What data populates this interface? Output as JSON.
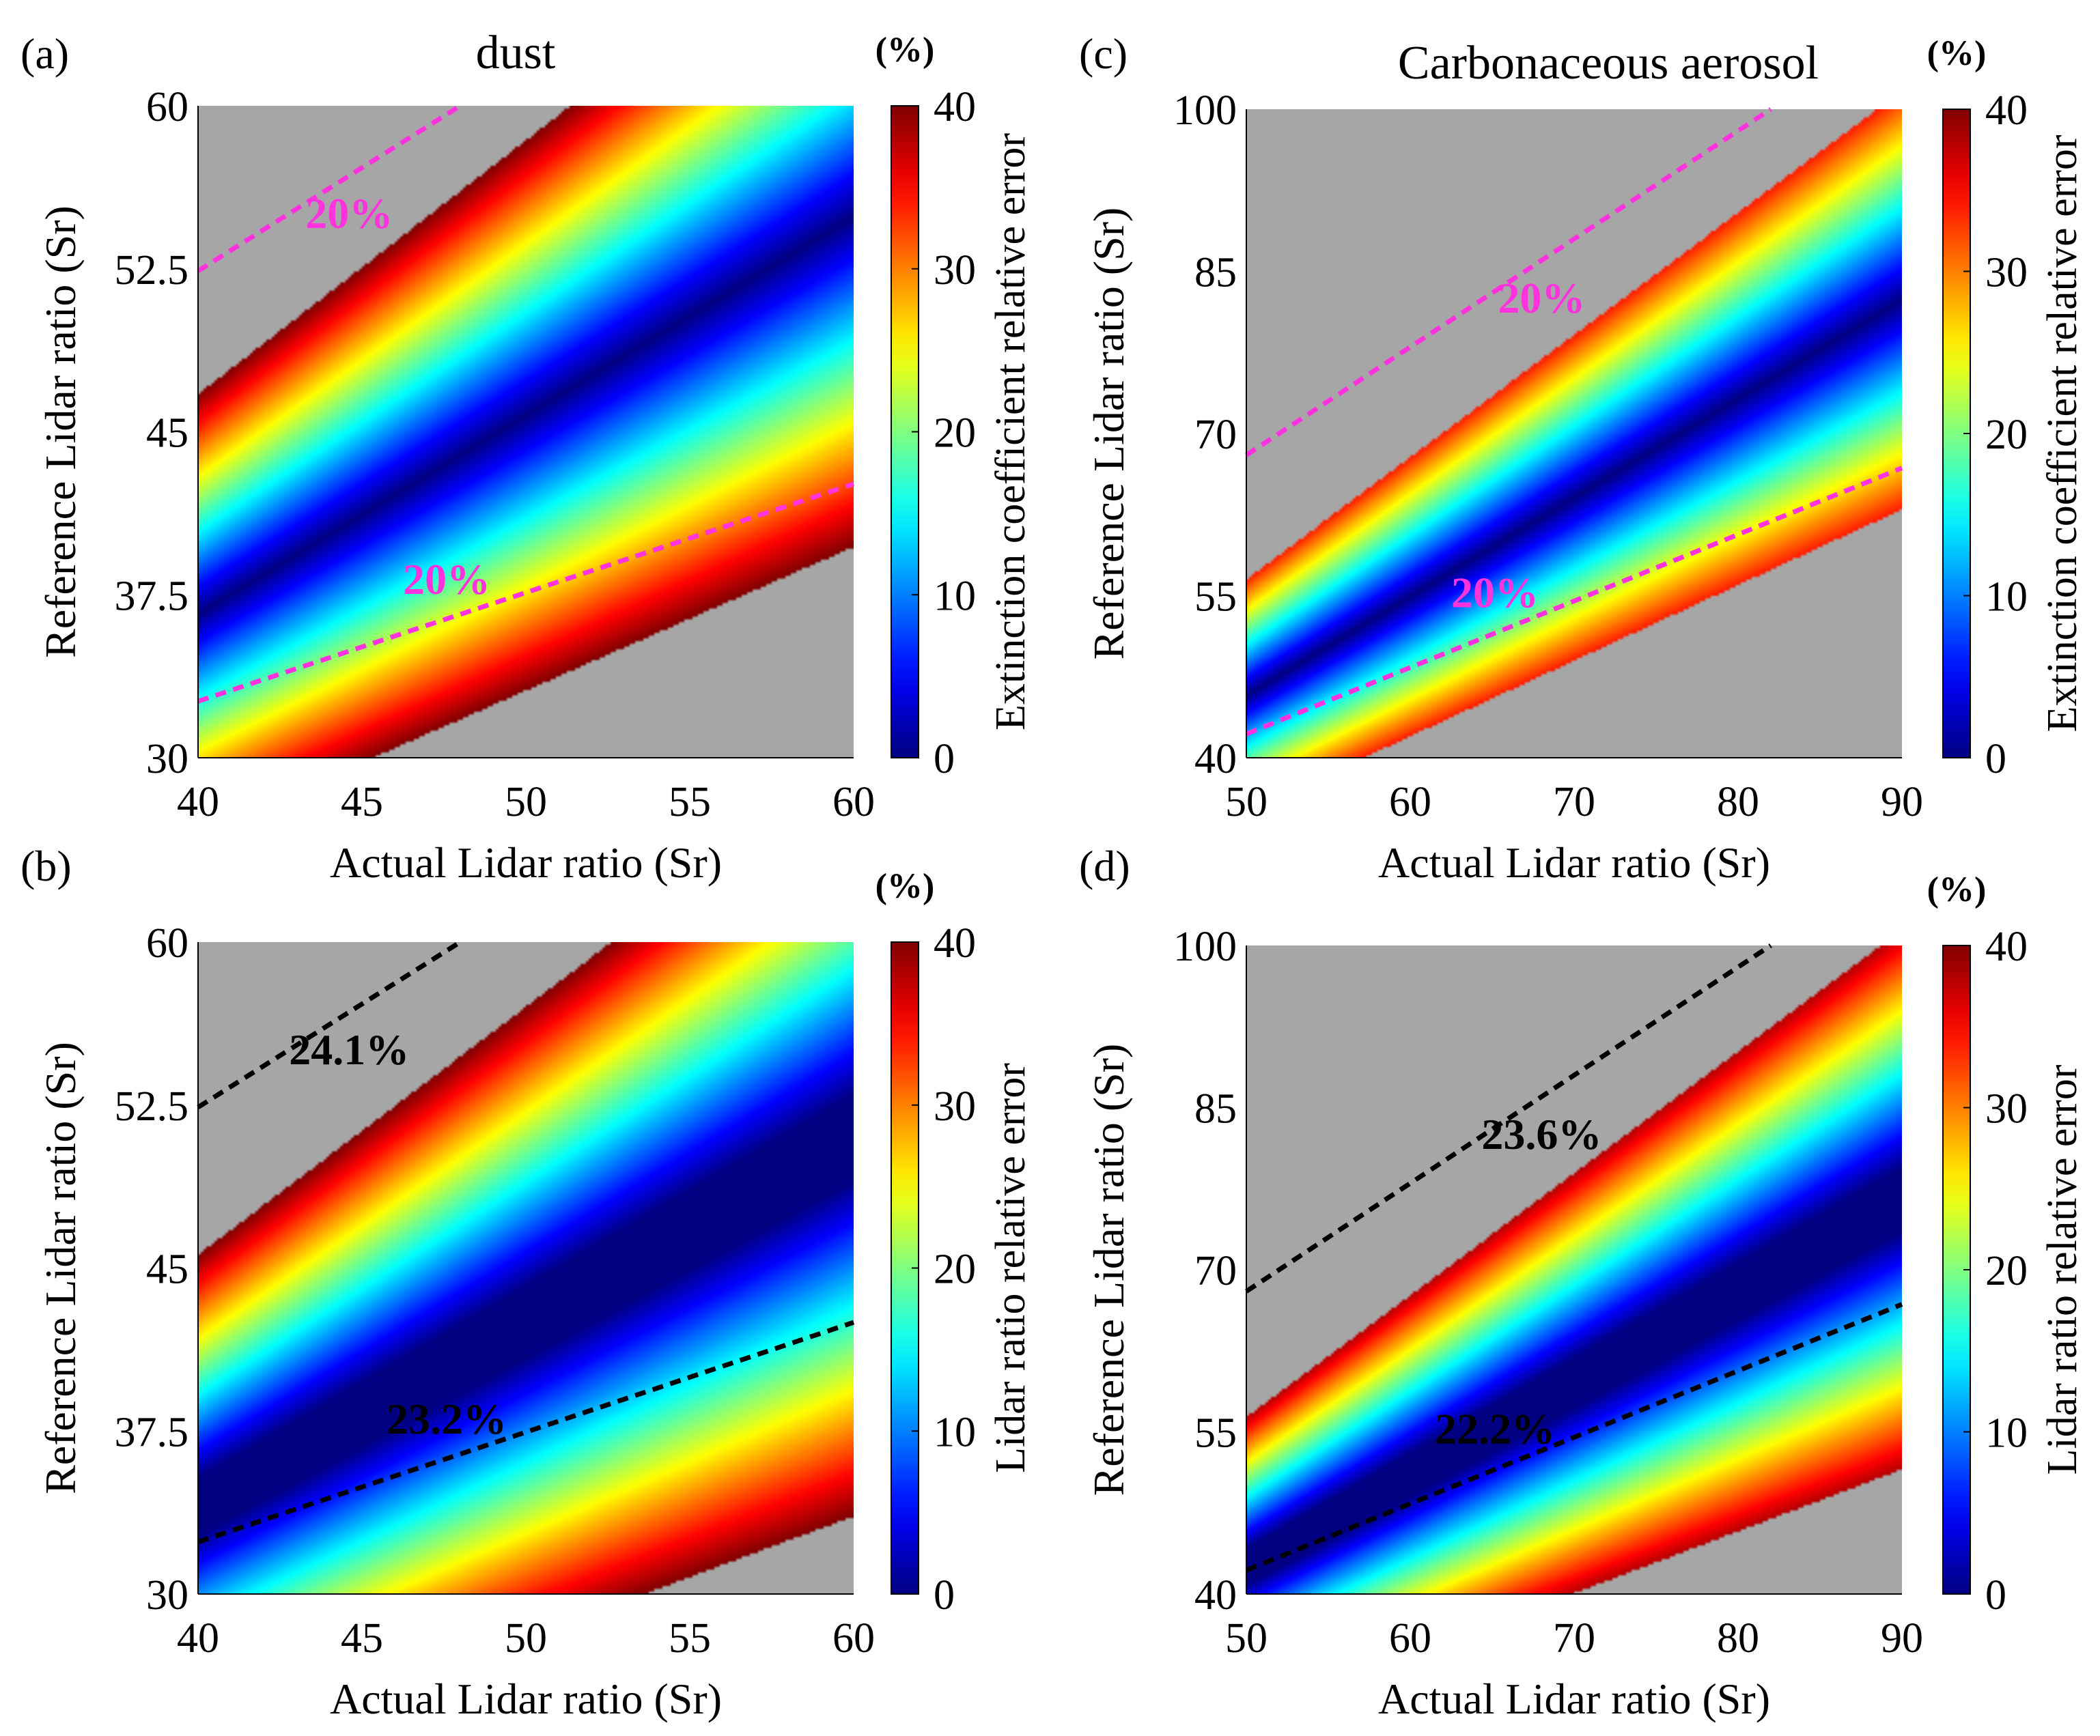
{
  "chart_data": [
    {
      "panel": "(a)",
      "type": "heatmap",
      "title": "dust",
      "xlabel": "Actual Lidar ratio (Sr)",
      "ylabel": "Reference Lidar ratio (Sr)",
      "xlim": [
        40,
        60
      ],
      "ylim": [
        30,
        60
      ],
      "xticks": [
        "40",
        "45",
        "50",
        "55",
        "60"
      ],
      "yticks": [
        "30",
        "37.5",
        "45",
        "52.5",
        "60"
      ],
      "colorbar": {
        "label": "Extinction coefficient relative error",
        "unit": "(%)",
        "range": [
          0,
          40
        ],
        "ticks": [
          "0",
          "10",
          "20",
          "30",
          "40"
        ],
        "colormap": "jet"
      },
      "error_model": "extinction",
      "valid_region_min_error": 0,
      "contours": [
        {
          "label": "20%",
          "color": "#ff33dd",
          "style": "dashed",
          "points": [
            [
              40,
              52.4
            ],
            [
              48,
              60
            ]
          ]
        },
        {
          "label": "20%",
          "color": "#ff33dd",
          "style": "dashed",
          "points": [
            [
              40,
              32.6
            ],
            [
              60,
              42.6
            ]
          ]
        }
      ],
      "missing_data_color": "#a6a6a6"
    },
    {
      "panel": "(b)",
      "type": "heatmap",
      "title": "",
      "xlabel": "Actual Lidar ratio (Sr)",
      "ylabel": "Reference Lidar ratio (Sr)",
      "xlim": [
        40,
        60
      ],
      "ylim": [
        30,
        60
      ],
      "xticks": [
        "40",
        "45",
        "50",
        "55",
        "60"
      ],
      "yticks": [
        "30",
        "37.5",
        "45",
        "52.5",
        "60"
      ],
      "colorbar": {
        "label": "Lidar ratio relative error",
        "unit": "(%)",
        "range": [
          0,
          40
        ],
        "ticks": [
          "0",
          "10",
          "20",
          "30",
          "40"
        ],
        "colormap": "jet"
      },
      "error_model": "lidar_ratio",
      "contours": [
        {
          "label": "24.1%",
          "color": "#000000",
          "style": "dashed",
          "points": [
            [
              40,
              52.4
            ],
            [
              48,
              60
            ]
          ]
        },
        {
          "label": "23.2%",
          "color": "#000000",
          "style": "dashed",
          "points": [
            [
              40,
              32.4
            ],
            [
              60,
              42.5
            ]
          ]
        }
      ],
      "missing_data_color": "#a6a6a6"
    },
    {
      "panel": "(c)",
      "type": "heatmap",
      "title": "Carbonaceous aerosol",
      "xlabel": "Actual Lidar ratio (Sr)",
      "ylabel": "Reference Lidar ratio (Sr)",
      "xlim": [
        50,
        90
      ],
      "ylim": [
        40,
        100
      ],
      "xticks": [
        "50",
        "60",
        "70",
        "80",
        "90"
      ],
      "yticks": [
        "40",
        "55",
        "70",
        "85",
        "100"
      ],
      "colorbar": {
        "label": "Extinction coefficient relative error",
        "unit": "(%)",
        "range": [
          0,
          40
        ],
        "ticks": [
          "0",
          "10",
          "20",
          "30",
          "40"
        ],
        "colormap": "jet"
      },
      "error_model": "extinction",
      "contours": [
        {
          "label": "20%",
          "color": "#ff33dd",
          "style": "dashed",
          "points": [
            [
              50,
              68
            ],
            [
              82,
              100
            ]
          ]
        },
        {
          "label": "20%",
          "color": "#ff33dd",
          "style": "dashed",
          "points": [
            [
              50,
              42.2
            ],
            [
              90,
              66.8
            ]
          ]
        }
      ],
      "missing_data_color": "#a6a6a6"
    },
    {
      "panel": "(d)",
      "type": "heatmap",
      "title": "",
      "xlabel": "Actual Lidar ratio (Sr)",
      "ylabel": "Reference Lidar ratio (Sr)",
      "xlim": [
        50,
        90
      ],
      "ylim": [
        40,
        100
      ],
      "xticks": [
        "50",
        "60",
        "70",
        "80",
        "90"
      ],
      "yticks": [
        "40",
        "55",
        "70",
        "85",
        "100"
      ],
      "colorbar": {
        "label": "Lidar ratio relative error",
        "unit": "(%)",
        "range": [
          0,
          40
        ],
        "ticks": [
          "0",
          "10",
          "20",
          "30",
          "40"
        ],
        "colormap": "jet"
      },
      "error_model": "lidar_ratio",
      "contours": [
        {
          "label": "23.6%",
          "color": "#000000",
          "style": "dashed",
          "points": [
            [
              50,
              68
            ],
            [
              82,
              100
            ]
          ]
        },
        {
          "label": "22.2%",
          "color": "#000000",
          "style": "dashed",
          "points": [
            [
              50,
              42.2
            ],
            [
              90,
              66.8
            ]
          ]
        }
      ],
      "missing_data_color": "#a6a6a6"
    }
  ]
}
